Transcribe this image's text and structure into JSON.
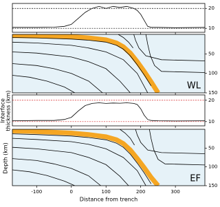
{
  "chart_data": [
    {
      "type": "line",
      "x": [
        -170,
        -100,
        -50,
        -20,
        0,
        20,
        40,
        60,
        80,
        100,
        120,
        140,
        160,
        180,
        190,
        200,
        210,
        220,
        230,
        250,
        300,
        385
      ],
      "series": [
        {
          "color": "#000000",
          "values": [
            10.5,
            10.5,
            10.6,
            11,
            12,
            15,
            18,
            20,
            21,
            20,
            21,
            20.5,
            21,
            20,
            19,
            17,
            14,
            11,
            10.5,
            10.5,
            10.3,
            10.5
          ]
        }
      ],
      "ylim": [
        8,
        22.5
      ],
      "yticks": [
        10,
        20
      ],
      "reference_lines": [
        {
          "value": 10,
          "color": "#000000"
        },
        {
          "value": 20,
          "color": "#000000"
        }
      ]
    },
    {
      "type": "cross-section",
      "annotation": "WL",
      "ylim": [
        0,
        150
      ],
      "inverted": true,
      "yticks": [
        50,
        100,
        150
      ],
      "series": [
        {
          "color": "#f5a623",
          "x": [
            -170,
            -100,
            0,
            50,
            100,
            130,
            150,
            170,
            190,
            210,
            230,
            250
          ],
          "values": [
            3,
            4,
            6,
            9,
            14,
            22,
            32,
            48,
            70,
            95,
            122,
            150
          ]
        },
        {
          "color": "#000000",
          "x": [
            -170,
            -100,
            0,
            50,
            100,
            130,
            150,
            170,
            190,
            210,
            230
          ],
          "values": [
            8,
            9,
            12,
            15,
            20,
            28,
            38,
            55,
            78,
            104,
            132
          ]
        },
        {
          "color": "#000000",
          "x": [
            -170,
            -100,
            0,
            50,
            100,
            150,
            190,
            220
          ],
          "values": [
            20,
            22,
            28,
            35,
            45,
            65,
            100,
            150
          ]
        },
        {
          "color": "#000000",
          "x": [
            -170,
            -100,
            0,
            50,
            100,
            140,
            170
          ],
          "values": [
            45,
            48,
            58,
            70,
            88,
            120,
            150
          ]
        },
        {
          "color": "#000000",
          "x": [
            -170,
            -100,
            -50,
            0,
            50,
            90
          ],
          "values": [
            75,
            80,
            88,
            100,
            120,
            150
          ]
        },
        {
          "color": "#000000",
          "x": [
            -170,
            -120,
            -70,
            -20,
            10
          ],
          "values": [
            105,
            110,
            120,
            135,
            150
          ]
        },
        {
          "color": "#000000",
          "x": [
            135,
            150,
            165,
            178
          ],
          "values": [
            0,
            8,
            20,
            35
          ]
        },
        {
          "color": "#000000",
          "x": [
            180,
            185,
            195,
            215,
            260,
            385
          ],
          "values": [
            0,
            15,
            35,
            55,
            65,
            68
          ]
        },
        {
          "color": "#000000",
          "x": [
            215,
            220,
            228,
            240,
            260,
            385
          ],
          "values": [
            0,
            25,
            55,
            80,
            95,
            98
          ]
        }
      ]
    },
    {
      "type": "line",
      "ylabel": [
        "Interface",
        "thickness (km)"
      ],
      "x": [
        -170,
        -100,
        -50,
        -20,
        0,
        20,
        40,
        60,
        80,
        100,
        120,
        140,
        160,
        180,
        190,
        200,
        210,
        220,
        230,
        250,
        300,
        385
      ],
      "series": [
        {
          "color": "#000000",
          "values": [
            10.4,
            10.5,
            10.5,
            11,
            12,
            15,
            17.5,
            18.5,
            18.8,
            18.5,
            18.7,
            18.6,
            18.8,
            18.5,
            18,
            16,
            13,
            11,
            10.5,
            10.4,
            10.3,
            10.4
          ]
        }
      ],
      "ylim": [
        8,
        22.5
      ],
      "yticks": [
        10,
        20
      ],
      "reference_lines": [
        {
          "value": 10,
          "color": "#d62728"
        },
        {
          "value": 20,
          "color": "#d62728"
        }
      ]
    },
    {
      "type": "cross-section",
      "annotation": "EF",
      "ylim": [
        0,
        150
      ],
      "inverted": true,
      "yticks": [
        50,
        100,
        150
      ],
      "xlim": [
        -170,
        385
      ],
      "xticks": [
        -100,
        0,
        100,
        200,
        300
      ],
      "xlabel": "Distance from trench",
      "ylabel": "Depth (km)",
      "series": [
        {
          "color": "#f5a623",
          "x": [
            -170,
            -100,
            0,
            50,
            100,
            130,
            150,
            170,
            190,
            210,
            230,
            250
          ],
          "values": [
            4,
            6,
            10,
            14,
            20,
            28,
            38,
            55,
            78,
            102,
            128,
            150
          ]
        },
        {
          "color": "#000000",
          "x": [
            -170,
            -100,
            0,
            50,
            100,
            130,
            150,
            170,
            190,
            210,
            230
          ],
          "values": [
            12,
            14,
            18,
            22,
            28,
            37,
            48,
            66,
            90,
            116,
            145
          ]
        },
        {
          "color": "#000000",
          "x": [
            -170,
            -100,
            0,
            50,
            100,
            150,
            190,
            215
          ],
          "values": [
            24,
            27,
            33,
            40,
            52,
            75,
            110,
            150
          ]
        },
        {
          "color": "#000000",
          "x": [
            -170,
            -100,
            0,
            50,
            100,
            140,
            165
          ],
          "values": [
            48,
            52,
            62,
            75,
            94,
            125,
            150
          ]
        },
        {
          "color": "#000000",
          "x": [
            -170,
            -100,
            -50,
            0,
            50,
            85
          ],
          "values": [
            78,
            83,
            92,
            104,
            124,
            150
          ]
        },
        {
          "color": "#000000",
          "x": [
            -170,
            -120,
            -70,
            -20,
            10
          ],
          "values": [
            108,
            113,
            123,
            138,
            150
          ]
        },
        {
          "color": "#000000",
          "x": [
            140,
            155,
            170,
            182
          ],
          "values": [
            0,
            10,
            24,
            42
          ]
        },
        {
          "color": "#000000",
          "x": [
            185,
            190,
            200,
            220,
            260,
            385
          ],
          "values": [
            0,
            15,
            35,
            55,
            62,
            65
          ]
        },
        {
          "color": "#000000",
          "x": [
            225,
            230,
            238,
            250,
            270,
            385
          ],
          "values": [
            0,
            25,
            55,
            80,
            92,
            95
          ]
        }
      ]
    }
  ]
}
